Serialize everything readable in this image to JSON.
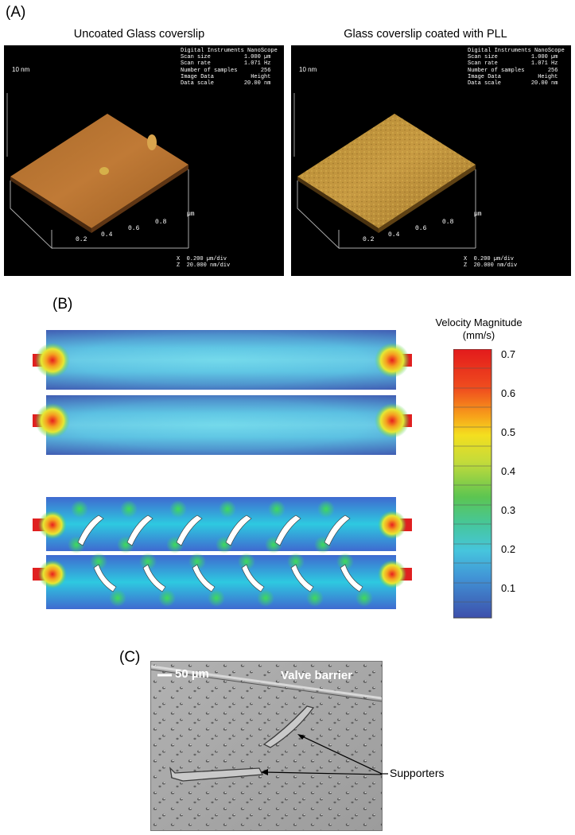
{
  "panels": {
    "a_label": "(A)",
    "b_label": "(B)",
    "c_label": "(C)"
  },
  "afm_left": {
    "title": "Uncoated Glass coverslip",
    "height_label": "10 nm",
    "info": "Digital Instruments NanoScope\nScan size          1.000 µm\nScan rate          1.071 Hz\nNumber of samples       256\nImage Data           Height\nData scale         20.00 nm",
    "ticks": [
      "0.2",
      "0.4",
      "0.6",
      "0.8"
    ],
    "unit": "µm",
    "scale": "X  0.200 µm/div\nZ  20.000 nm/div",
    "surface_color": "#b8722e"
  },
  "afm_right": {
    "title": "Glass coverslip coated with PLL",
    "height_label": "10 nm",
    "info": "Digital Instruments NanoScope\nScan size          1.000 µm\nScan rate          1.071 Hz\nNumber of samples       256\nImage Data           Height\nData scale         20.00 nm",
    "ticks": [
      "0.2",
      "0.4",
      "0.6",
      "0.8"
    ],
    "unit": "µm",
    "scale": "X  0.200 µm/div\nZ  20.000 nm/div",
    "surface_color": "#b9903a"
  },
  "colorbar": {
    "title_line1": "Velocity Magnitude",
    "title_line2": "(mm/s)",
    "ticks": [
      "0.7",
      "0.6",
      "0.5",
      "0.4",
      "0.3",
      "0.2",
      "0.1"
    ]
  },
  "micrograph": {
    "scale_bar": "50 µm",
    "barrier_label": "Valve barrier",
    "supporters_label": "Supporters"
  },
  "colors": {
    "flow_blue": "#4a63b8",
    "flow_cyan": "#4fd3e8",
    "flow_green": "#3fd26c",
    "flow_red": "#e02020"
  }
}
